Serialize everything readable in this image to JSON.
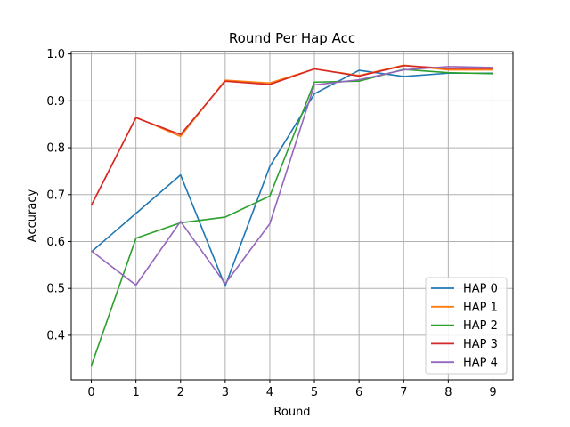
{
  "chart_data": {
    "type": "line",
    "title": "Round Per Hap Acc",
    "xlabel": "Round",
    "ylabel": "Accuracy",
    "x": [
      0,
      1,
      2,
      3,
      4,
      5,
      6,
      7,
      8,
      9
    ],
    "xticks": [
      "0",
      "1",
      "2",
      "3",
      "4",
      "5",
      "6",
      "7",
      "8",
      "9"
    ],
    "yticks": [
      "0.4",
      "0.5",
      "0.6",
      "0.7",
      "0.8",
      "0.9",
      "1.0"
    ],
    "xlim": [
      -0.45,
      9.45
    ],
    "ylim": [
      0.305,
      1.005
    ],
    "grid": true,
    "legend_position": "lower right",
    "series": [
      {
        "name": "HAP 0",
        "color": "#1f77b4",
        "values": [
          0.578,
          0.66,
          0.742,
          0.505,
          0.76,
          0.915,
          0.965,
          0.952,
          0.959,
          0.959
        ]
      },
      {
        "name": "HAP 1",
        "color": "#ff7f0e",
        "values": [
          0.677,
          0.865,
          0.824,
          0.944,
          0.938,
          0.968,
          0.954,
          0.976,
          0.966,
          0.966
        ]
      },
      {
        "name": "HAP 2",
        "color": "#2ca02c",
        "values": [
          0.335,
          0.607,
          0.64,
          0.652,
          0.697,
          0.94,
          0.942,
          0.967,
          0.96,
          0.958
        ]
      },
      {
        "name": "HAP 3",
        "color": "#d62728",
        "values": [
          0.677,
          0.864,
          0.828,
          0.942,
          0.935,
          0.968,
          0.953,
          0.975,
          0.969,
          0.969
        ]
      },
      {
        "name": "HAP 4",
        "color": "#9467bd",
        "values": [
          0.58,
          0.507,
          0.643,
          0.51,
          0.638,
          0.934,
          0.945,
          0.966,
          0.973,
          0.971
        ]
      }
    ]
  }
}
